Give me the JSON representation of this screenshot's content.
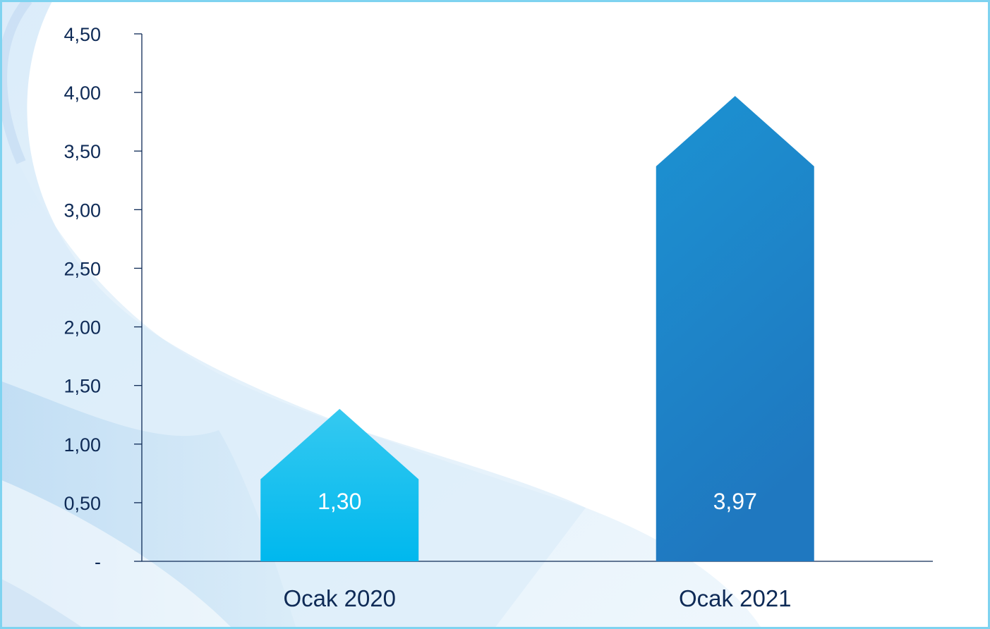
{
  "colors": {
    "border": "#7fd3f0",
    "axis": "#0e2a56",
    "text": "#0e2a56",
    "bar_light": "#0fbdec",
    "bar_dark": "#1f7fc4",
    "data_label": "#ffffff"
  },
  "chart_data": {
    "type": "bar",
    "bar_shape": "house-arrow",
    "categories": [
      "Ocak 2020",
      "Ocak 2021"
    ],
    "values": [
      1.3,
      3.97
    ],
    "data_labels": [
      "1,30",
      "3,97"
    ],
    "ylim": [
      0,
      4.5
    ],
    "ytick_values": [
      0,
      0.5,
      1,
      1.5,
      2,
      2.5,
      3,
      3.5,
      4,
      4.5
    ],
    "ytick_labels": [
      "-",
      "0,50",
      "1,00",
      "1,50",
      "2,00",
      "2,50",
      "3,00",
      "3,50",
      "4,00",
      "4,50"
    ],
    "grid": false,
    "legend": "none"
  }
}
